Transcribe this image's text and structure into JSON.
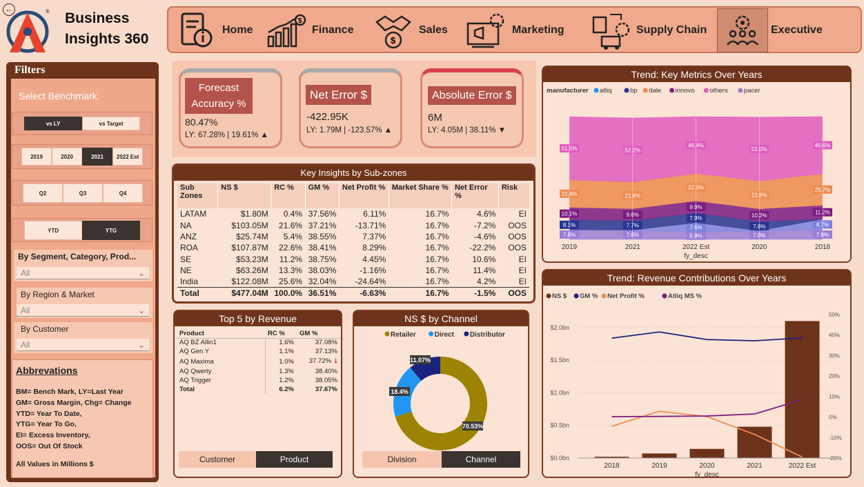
{
  "app": {
    "title_line1": "Business",
    "title_line2": "Insights 360",
    "back_icon": "back-arrow-icon",
    "logo": "atliq-logo"
  },
  "nav": [
    {
      "label": "Home",
      "icon": "home-report-icon"
    },
    {
      "label": "Finance",
      "icon": "finance-chart-icon"
    },
    {
      "label": "Sales",
      "icon": "handshake-icon"
    },
    {
      "label": "Marketing",
      "icon": "megaphone-icon"
    },
    {
      "label": "Supply Chain",
      "icon": "supply-chain-icon"
    },
    {
      "label": "Executive",
      "icon": "executive-team-icon",
      "active": true
    }
  ],
  "filters": {
    "title": "Filters",
    "benchmark_label": "Select Benchmark",
    "benchmark": [
      "vs LY",
      "vs Target"
    ],
    "years": [
      "2019",
      "2020",
      "2021",
      "2022 Est"
    ],
    "quarters": [
      "Q2",
      "Q3",
      "Q4"
    ],
    "periods": [
      "YTD",
      "YTG"
    ],
    "segment_label": "By Segment, Category, Prod...",
    "segment_value": "All",
    "region_label": "By Region & Market",
    "region_value": "All",
    "customer_label": "By Customer",
    "customer_value": "All"
  },
  "abbrev": {
    "title": "Abbrevations",
    "lines": [
      "BM= Bench Mark, LY=Last Year",
      "GM= Gross Margin, Chg= Change",
      "YTD= Year To Date,",
      "YTG= Year To Go,",
      "EI= Excess Inventory,",
      "OOS= Out Of Stock"
    ],
    "footer": "All Values in Millions $"
  },
  "kpis": [
    {
      "label_l1": "Forecast",
      "label_l2": "Accuracy %",
      "value": "80.47%",
      "sub": "LY: 67.28% | 19.61% ▲",
      "accent": "#a8a8a8"
    },
    {
      "label_l1": "Net Error $",
      "label_l2": "",
      "value": "-422.95K",
      "sub": "LY: 1.79M | -123.57% ▲",
      "accent": "#a8a8a8"
    },
    {
      "label_l1": "Absolute Error $",
      "label_l2": "",
      "value": "6M",
      "sub": "LY: 4.05M | 38.11% ▼",
      "accent": "#d9414b"
    }
  ],
  "subzones": {
    "title": "Key Insights by Sub-zones",
    "headers": [
      "Sub Zones",
      "NS $",
      "RC %",
      "GM %",
      "Net Profit %",
      "Market Share %",
      "Net Error %",
      "Risk"
    ],
    "rows": [
      [
        "LATAM",
        "$1.80M",
        "0.4%",
        "37.56%",
        "6.11%",
        "16.7%",
        "4.6%",
        "EI"
      ],
      [
        "NA",
        "$103.05M",
        "21.6%",
        "37.21%",
        "-13.71%",
        "16.7%",
        "-7.2%",
        "OOS"
      ],
      [
        "ANZ",
        "$25.74M",
        "5.4%",
        "38.55%",
        "7.37%",
        "16.7%",
        "-4.6%",
        "OOS"
      ],
      [
        "ROA",
        "$107.87M",
        "22.6%",
        "38.41%",
        "8.29%",
        "16.7%",
        "-22.2%",
        "OOS"
      ],
      [
        "SE",
        "$53.23M",
        "11.2%",
        "38.75%",
        "4.45%",
        "16.7%",
        "10.6%",
        "EI"
      ],
      [
        "NE",
        "$63.26M",
        "13.3%",
        "38.03%",
        "-1.16%",
        "16.7%",
        "11.4%",
        "EI"
      ],
      [
        "India",
        "$122.08M",
        "25.6%",
        "32.04%",
        "-24.64%",
        "16.7%",
        "4.2%",
        "EI"
      ]
    ],
    "total": [
      "Total",
      "$477.04M",
      "100.0%",
      "36.51%",
      "-6.63%",
      "16.7%",
      "-1.5%",
      "OOS"
    ]
  },
  "top5": {
    "title": "Top 5 by Revenue",
    "headers": [
      "Product",
      "RC %",
      "GM %"
    ],
    "rows": [
      [
        "AQ BZ Allin1",
        "1.6%",
        "37.08%"
      ],
      [
        "AQ Gen Y",
        "1.1%",
        "37.13%"
      ],
      [
        "AQ Maxima",
        "1.0%",
        "37.72%"
      ],
      [
        "AQ Qwerty",
        "1.3%",
        "38.40%"
      ],
      [
        "AQ Trigger",
        "1.2%",
        "38.05%"
      ]
    ],
    "total": [
      "Total",
      "6.2%",
      "37.67%"
    ],
    "tabs": [
      "Customer",
      "Product"
    ]
  },
  "channel": {
    "title": "NS $ by Channel",
    "tabs": [
      "Division",
      "Channel"
    ]
  },
  "trend1": {
    "title": "Trend: Key Metrics Over Years",
    "legend_title": "manufacturer",
    "xlabel": "fy_desc"
  },
  "trend2": {
    "title": "Trend: Revenue Contributions Over Years",
    "xlabel": "fy_desc"
  },
  "chart_data": [
    {
      "type": "pie",
      "title": "NS $ by Channel",
      "categories": [
        "Retailer",
        "Direct",
        "Distributor"
      ],
      "values": [
        70.53,
        18.4,
        11.07
      ],
      "labels": [
        "70.53%",
        "18.4%",
        "11.07%"
      ],
      "colors": [
        "#9c8304",
        "#2196f3",
        "#1a237e"
      ],
      "legend": "top"
    },
    {
      "type": "area",
      "title": "Trend: Key Metrics Over Years",
      "xlabel": "fy_desc",
      "stacked_percent": true,
      "categories": [
        "2019",
        "2021",
        "2022 Est",
        "2020",
        "2018"
      ],
      "series": [
        {
          "name": "pacer",
          "color": "#9a7fd8",
          "values": [
            7.8,
            7.6,
            5.9,
            7.0,
            7.8
          ],
          "labels": [
            "7.8%",
            "7.6%",
            "5.9%",
            "7.0%",
            "7.8%"
          ]
        },
        {
          "name": "others",
          "color": "#7d82df",
          "values": [
            0,
            0,
            7.6,
            0,
            8.7
          ],
          "labels": [
            "",
            "",
            "7.6%",
            "",
            "8.7%"
          ]
        },
        {
          "name": "innovo",
          "color": "#283593",
          "values": [
            8.1,
            7.7,
            7.9,
            7.6,
            0
          ],
          "labels": [
            "8.1%",
            "7.7%",
            "7.9%",
            "7.6%",
            ""
          ]
        },
        {
          "name": "dale",
          "color": "#7b1c82",
          "values": [
            10.1,
            9.6,
            9.9,
            10.2,
            11.2
          ],
          "labels": [
            "10.1%",
            "9.6%",
            "9.9%",
            "10.2%",
            "11.2%"
          ]
        },
        {
          "name": "bp",
          "color": "#ee8c4f",
          "values": [
            22.4,
            21.8,
            22.3,
            22.8,
            25.7
          ],
          "labels": [
            "22.4%",
            "21.8%",
            "22.3%",
            "22.8%",
            "25.7%"
          ]
        },
        {
          "name": "atliq",
          "color": "#e05cbf",
          "values": [
            51.5,
            52.2,
            46.4,
            52.0,
            46.6
          ],
          "labels": [
            "51.5%",
            "52.2%",
            "46.4%",
            "52.0%",
            "46.6%"
          ]
        }
      ],
      "legend": [
        "atliq",
        "bp",
        "dale",
        "innovo",
        "others",
        "pacer"
      ],
      "legend_colors": [
        "#2196f3",
        "#283593",
        "#ee8c4f",
        "#7b1c82",
        "#e05cbf",
        "#9a7fd8"
      ]
    },
    {
      "type": "bar",
      "title": "Trend: Revenue Contributions Over Years",
      "xlabel": "fy_desc",
      "categories": [
        "2018",
        "2019",
        "2020",
        "2021",
        "2022 Est"
      ],
      "series": [
        {
          "name": "NS $",
          "type": "bar",
          "axis": "left",
          "color": "#6e331b",
          "values": [
            0.02,
            0.07,
            0.14,
            0.48,
            2.1
          ]
        },
        {
          "name": "GM %",
          "type": "line",
          "axis": "right",
          "color": "#1a237e",
          "values": [
            38.5,
            41.5,
            37.8,
            37.2,
            38.6
          ]
        },
        {
          "name": "Net Profit %",
          "type": "line",
          "axis": "right",
          "color": "#ee8c4f",
          "values": [
            -4.5,
            2.8,
            0.2,
            -8.5,
            -19.5
          ]
        },
        {
          "name": "Atliq MS %",
          "type": "line",
          "axis": "right",
          "color": "#7b1c82",
          "values": [
            0.2,
            0.3,
            0.5,
            1.5,
            8.5
          ]
        }
      ],
      "y_left": {
        "min": 0,
        "max": 2.2,
        "ticks": [
          "$0.0bn",
          "$0.5bn",
          "$1.0bn",
          "$1.5bn",
          "$2.0bn"
        ],
        "tick_values": [
          0,
          0.5,
          1.0,
          1.5,
          2.0
        ]
      },
      "y_right": {
        "min": -20,
        "max": 50,
        "ticks": [
          "50%",
          "40%",
          "30%",
          "20%",
          "10%",
          "0%",
          "-10%",
          "-20%"
        ],
        "tick_values": [
          50,
          40,
          30,
          20,
          10,
          0,
          -10,
          -20
        ]
      },
      "legend": "top-left"
    }
  ]
}
